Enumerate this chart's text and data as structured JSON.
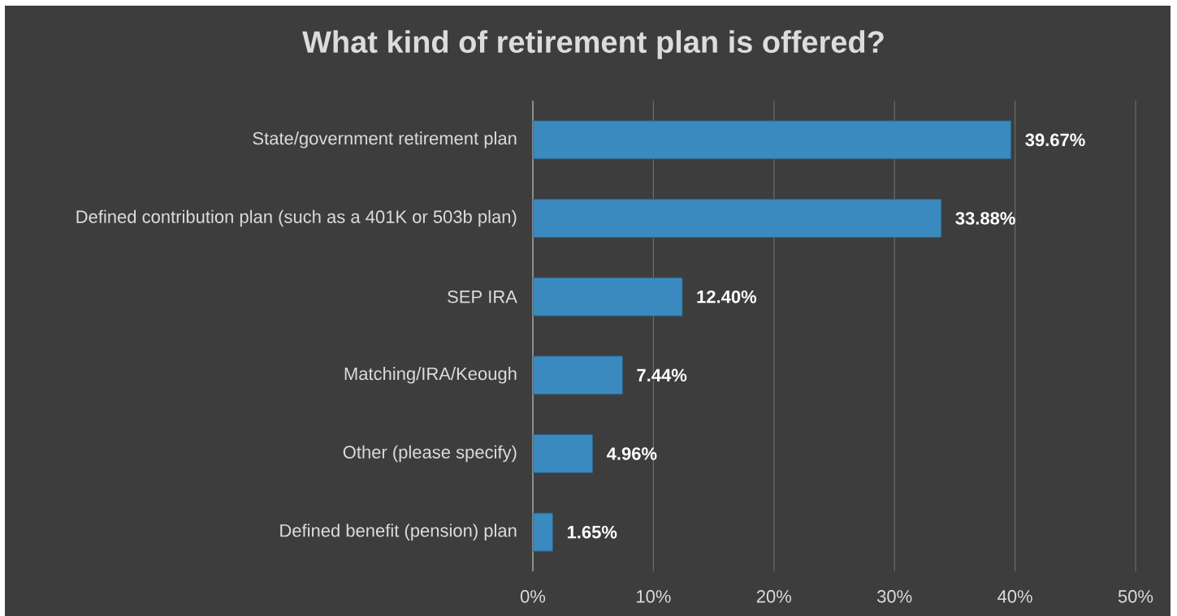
{
  "chart_data": {
    "type": "bar",
    "orientation": "horizontal",
    "title": "What kind of retirement plan is offered?",
    "categories": [
      "State/government retirement plan",
      "Defined contribution plan (such as a 401K or 503b plan)",
      "SEP IRA",
      "Matching/IRA/Keough",
      "Other (please specify)",
      "Defined benefit (pension) plan"
    ],
    "values": [
      39.67,
      33.88,
      12.4,
      7.44,
      4.96,
      1.65
    ],
    "value_labels": [
      "39.67%",
      "33.88%",
      "12.40%",
      "7.44%",
      "4.96%",
      "1.65%"
    ],
    "color": "#3a8abf",
    "xlim": [
      0,
      50
    ],
    "xticks": [
      {
        "value": 0,
        "label": "0%"
      },
      {
        "value": 10,
        "label": "10%"
      },
      {
        "value": 20,
        "label": "20%"
      },
      {
        "value": 30,
        "label": "30%"
      },
      {
        "value": 40,
        "label": "40%"
      },
      {
        "value": 50,
        "label": "50%"
      }
    ],
    "grid": "x"
  }
}
